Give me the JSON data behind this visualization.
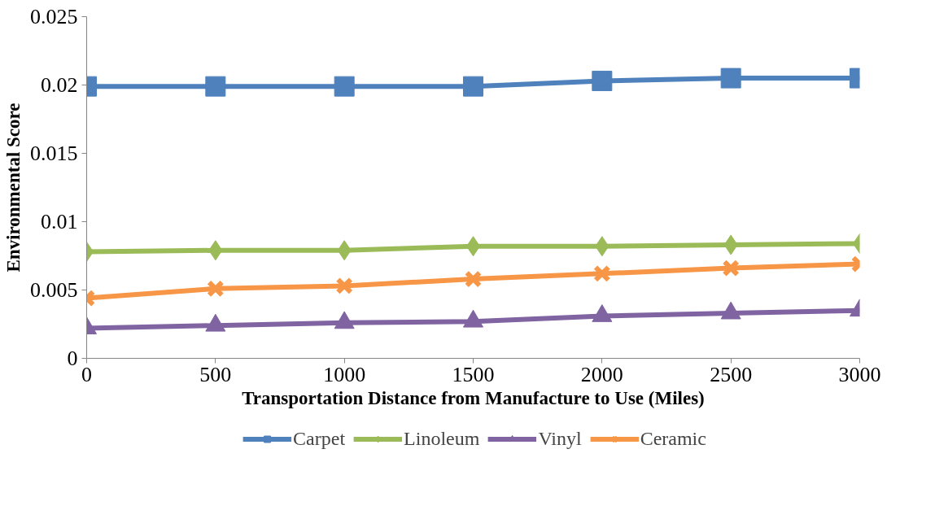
{
  "chart_data": {
    "type": "line",
    "xlabel": "Transportation Distance from Manufacture to Use (Miles)",
    "ylabel": "Environmental Score",
    "x": [
      0,
      500,
      1000,
      1500,
      2000,
      2500,
      3000
    ],
    "xlim": [
      0,
      3000
    ],
    "xticks": [
      0,
      500,
      1000,
      1500,
      2000,
      2500,
      3000
    ],
    "ylim": [
      0,
      0.025
    ],
    "yticks": [
      0,
      0.005,
      0.01,
      0.015,
      0.02,
      0.025
    ],
    "grid": false,
    "legend": "bottom",
    "series": [
      {
        "name": "Carpet",
        "color": "#4f81bd",
        "marker": "square",
        "values": [
          0.0199,
          0.0199,
          0.0199,
          0.0199,
          0.0203,
          0.0205,
          0.0205
        ]
      },
      {
        "name": "Linoleum",
        "color": "#9bbb59",
        "marker": "diamond",
        "values": [
          0.0078,
          0.0079,
          0.0079,
          0.0082,
          0.0082,
          0.0083,
          0.0084
        ]
      },
      {
        "name": "Vinyl",
        "color": "#8064a2",
        "marker": "triangle",
        "values": [
          0.0022,
          0.0024,
          0.0026,
          0.0027,
          0.0031,
          0.0033,
          0.0035
        ]
      },
      {
        "name": "Ceramic",
        "color": "#f79646",
        "marker": "cross",
        "values": [
          0.0044,
          0.0051,
          0.0053,
          0.0058,
          0.0062,
          0.0066,
          0.0069
        ]
      }
    ]
  }
}
